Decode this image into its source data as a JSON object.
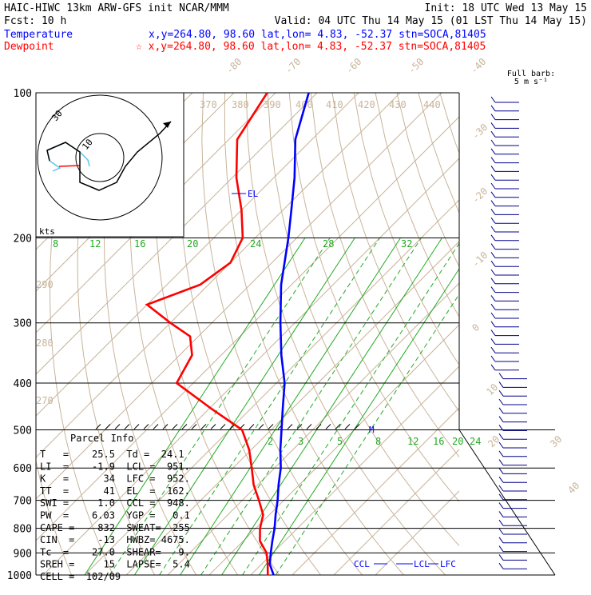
{
  "header": {
    "line1_left": "HAIC-HIWC 13km ARW-GFS init  NCAR/MMM",
    "line1_right": "Init: 18 UTC Wed 13 May 15",
    "line2_left": "Fcst:   10 h",
    "line2_right": "Valid: 04 UTC Thu 14 May 15 (01 LST Thu 14 May 15)",
    "temp_label": "Temperature",
    "temp_info": "x,y=264.80, 98.60   lat,lon=  4.83, -52.37  stn=SOCA,81405",
    "dew_label": "Dewpoint",
    "dew_info": "☆ x,y=264.80, 98.60   lat,lon=  4.83, -52.37  stn=SOCA,81405"
  },
  "barb_legend": {
    "line1": "Full barb:",
    "line2": "5 m s⁻¹"
  },
  "colors": {
    "temperature": "#0000ff",
    "dewpoint": "#ff0000",
    "isobar": "#000000",
    "isotherm": "#c8b49a",
    "mixing_ratio": "#22aa22"
  },
  "hodograph": {
    "ring_label_outer": "30",
    "ring_label_inner": "10",
    "units": "kts"
  },
  "parcel_info": {
    "title": "Parcel Info",
    "rows": [
      "T   =    25.5  Td =  24.1",
      "LI  =    -1.9  LCL =  951.",
      "K   =      34  LFC =  952.",
      "TT  =      41  EL  =  162.",
      "SWI =     1.0  CCL =  948.",
      "PW  =    6.03  YGP =   0.1",
      "CAPE =    832  SWEAT=  255",
      "CIN  =    -13  HWBZ= 4675.",
      "Tc  =    27.0  SHEAR=   9.",
      "SREH =     15  LAPSE=  5.4",
      "CELL =  102/09"
    ]
  },
  "annotations": {
    "el": "EL",
    "ccl": "CCL",
    "lcl": "LCL",
    "lfc": "LFC",
    "m": "M"
  },
  "chart_data": {
    "type": "line",
    "title": "HAIC-HIWC 13km ARW-GFS init",
    "pressure_levels_hPa": [
      100,
      200,
      300,
      400,
      500,
      600,
      700,
      800,
      900,
      1000
    ],
    "isotherm_labels": [
      "-80",
      "-70",
      "-60",
      "-50",
      "-40",
      "-30",
      "-20",
      "-10",
      "0",
      "10",
      "20",
      "30",
      "40"
    ],
    "theta_labels": [
      "370",
      "380",
      "390",
      "400",
      "410",
      "420",
      "430",
      "440",
      "290",
      "280",
      "270"
    ],
    "mixing_ratio_labels_upper": [
      "8",
      "12",
      "16",
      "20",
      "24",
      "28",
      "32"
    ],
    "mixing_ratio_labels_lower": [
      "2",
      "3",
      "5",
      "8",
      "12",
      "16",
      "20",
      "24"
    ],
    "series": [
      {
        "name": "Temperature",
        "pressure": [
          1000,
          950,
          900,
          850,
          800,
          750,
          700,
          650,
          600,
          550,
          500,
          450,
          400,
          350,
          300,
          250,
          200,
          175,
          150,
          125,
          100
        ],
        "temp_C": [
          25.5,
          22.0,
          19.5,
          17.0,
          14.5,
          11.5,
          8.5,
          5.0,
          1.5,
          -3.0,
          -7.5,
          -12.5,
          -18.0,
          -25.5,
          -33.5,
          -42.5,
          -52.0,
          -58.0,
          -65.0,
          -74.0,
          -82.0
        ]
      },
      {
        "name": "Dewpoint",
        "pressure": [
          1000,
          950,
          900,
          850,
          800,
          750,
          700,
          650,
          600,
          550,
          500,
          450,
          400,
          350,
          320,
          300,
          275,
          250,
          225,
          200,
          175,
          150,
          125,
          100
        ],
        "temp_C": [
          24.1,
          21.5,
          18.5,
          14.0,
          11.0,
          8.5,
          4.0,
          -1.0,
          -5.5,
          -10.5,
          -17.0,
          -30.0,
          -44.0,
          -47.0,
          -52.0,
          -60.0,
          -70.0,
          -62.0,
          -60.0,
          -63.0,
          -70.0,
          -79.0,
          -88.0,
          -92.0
        ]
      }
    ],
    "ylim_hPa": [
      1000,
      100
    ],
    "y_scale": "log"
  }
}
